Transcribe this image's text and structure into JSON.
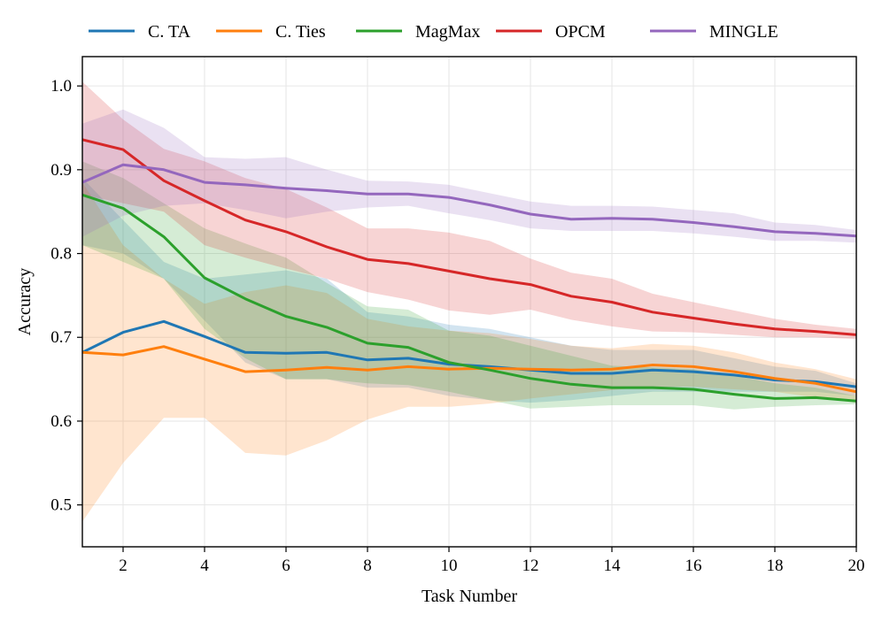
{
  "chart_data": {
    "type": "line",
    "xlabel": "Task Number",
    "ylabel": "Accuracy",
    "xlim": [
      1,
      20
    ],
    "ylim": [
      0.45,
      1.035
    ],
    "xticks": [
      2,
      4,
      6,
      8,
      10,
      12,
      14,
      16,
      18,
      20
    ],
    "xtick_labels": [
      "2",
      "4",
      "6",
      "8",
      "10",
      "12",
      "14",
      "16",
      "18",
      "20"
    ],
    "yticks": [
      0.5,
      0.6,
      0.7,
      0.8,
      0.9,
      1.0
    ],
    "ytick_labels": [
      "0.5",
      "0.6",
      "0.7",
      "0.8",
      "0.9",
      "1.0"
    ],
    "grid": true,
    "legend_position": "top, above plot",
    "x": [
      1,
      2,
      3,
      4,
      5,
      6,
      7,
      8,
      9,
      10,
      11,
      12,
      13,
      14,
      15,
      16,
      17,
      18,
      19,
      20
    ],
    "series": [
      {
        "name": "C. TA",
        "color": "#1f77b4",
        "values": [
          0.682,
          0.706,
          0.719,
          0.701,
          0.682,
          0.681,
          0.682,
          0.673,
          0.675,
          0.668,
          0.665,
          0.661,
          0.657,
          0.657,
          0.661,
          0.659,
          0.655,
          0.649,
          0.647,
          0.641
        ],
        "lower": [
          0.81,
          0.8,
          0.77,
          0.72,
          0.67,
          0.65,
          0.65,
          0.64,
          0.64,
          0.63,
          0.625,
          0.622,
          0.625,
          0.63,
          0.635,
          0.635,
          0.635,
          0.635,
          0.635,
          0.63
        ],
        "upper": [
          0.89,
          0.84,
          0.79,
          0.77,
          0.775,
          0.78,
          0.77,
          0.73,
          0.725,
          0.715,
          0.71,
          0.7,
          0.69,
          0.685,
          0.685,
          0.685,
          0.675,
          0.665,
          0.66,
          0.645
        ]
      },
      {
        "name": "C. Ties",
        "color": "#ff7f0e",
        "values": [
          0.682,
          0.679,
          0.689,
          0.674,
          0.659,
          0.661,
          0.664,
          0.661,
          0.665,
          0.662,
          0.663,
          0.662,
          0.661,
          0.662,
          0.667,
          0.665,
          0.659,
          0.651,
          0.645,
          0.635
        ],
        "lower": [
          0.48,
          0.55,
          0.604,
          0.604,
          0.562,
          0.559,
          0.577,
          0.602,
          0.617,
          0.617,
          0.621,
          0.627,
          0.632,
          0.637,
          0.641,
          0.641,
          0.638,
          0.635,
          0.628,
          0.622
        ],
        "upper": [
          0.885,
          0.81,
          0.77,
          0.74,
          0.754,
          0.762,
          0.753,
          0.722,
          0.713,
          0.708,
          0.705,
          0.698,
          0.69,
          0.687,
          0.692,
          0.69,
          0.682,
          0.67,
          0.662,
          0.65
        ]
      },
      {
        "name": "MagMax",
        "color": "#2ca02c",
        "values": [
          0.87,
          0.854,
          0.82,
          0.771,
          0.746,
          0.725,
          0.712,
          0.693,
          0.688,
          0.67,
          0.661,
          0.651,
          0.644,
          0.64,
          0.64,
          0.638,
          0.632,
          0.627,
          0.628,
          0.624
        ],
        "lower": [
          0.81,
          0.79,
          0.77,
          0.71,
          0.675,
          0.65,
          0.65,
          0.645,
          0.643,
          0.635,
          0.625,
          0.615,
          0.617,
          0.619,
          0.619,
          0.619,
          0.614,
          0.617,
          0.619,
          0.62
        ],
        "upper": [
          0.91,
          0.89,
          0.86,
          0.83,
          0.812,
          0.795,
          0.765,
          0.737,
          0.733,
          0.708,
          0.702,
          0.69,
          0.678,
          0.666,
          0.664,
          0.662,
          0.654,
          0.645,
          0.64,
          0.63
        ]
      },
      {
        "name": "OPCM",
        "color": "#d62728",
        "values": [
          0.936,
          0.924,
          0.887,
          0.863,
          0.84,
          0.826,
          0.808,
          0.793,
          0.788,
          0.779,
          0.77,
          0.763,
          0.749,
          0.742,
          0.73,
          0.723,
          0.716,
          0.71,
          0.707,
          0.703
        ],
        "lower": [
          0.87,
          0.86,
          0.85,
          0.81,
          0.795,
          0.782,
          0.77,
          0.754,
          0.745,
          0.732,
          0.727,
          0.733,
          0.721,
          0.713,
          0.707,
          0.706,
          0.703,
          0.7,
          0.7,
          0.698
        ],
        "upper": [
          1.005,
          0.96,
          0.925,
          0.91,
          0.89,
          0.877,
          0.855,
          0.83,
          0.83,
          0.825,
          0.815,
          0.794,
          0.777,
          0.77,
          0.752,
          0.742,
          0.732,
          0.722,
          0.715,
          0.71
        ]
      },
      {
        "name": "MINGLE",
        "color": "#9467bd",
        "values": [
          0.885,
          0.906,
          0.9,
          0.885,
          0.882,
          0.878,
          0.875,
          0.871,
          0.871,
          0.867,
          0.858,
          0.847,
          0.841,
          0.842,
          0.841,
          0.837,
          0.832,
          0.826,
          0.824,
          0.821
        ],
        "lower": [
          0.82,
          0.845,
          0.857,
          0.86,
          0.852,
          0.842,
          0.85,
          0.855,
          0.857,
          0.848,
          0.84,
          0.83,
          0.827,
          0.827,
          0.827,
          0.824,
          0.82,
          0.815,
          0.815,
          0.813
        ],
        "upper": [
          0.955,
          0.972,
          0.95,
          0.915,
          0.913,
          0.915,
          0.9,
          0.887,
          0.886,
          0.882,
          0.872,
          0.862,
          0.857,
          0.857,
          0.856,
          0.852,
          0.848,
          0.837,
          0.834,
          0.828
        ]
      }
    ]
  }
}
